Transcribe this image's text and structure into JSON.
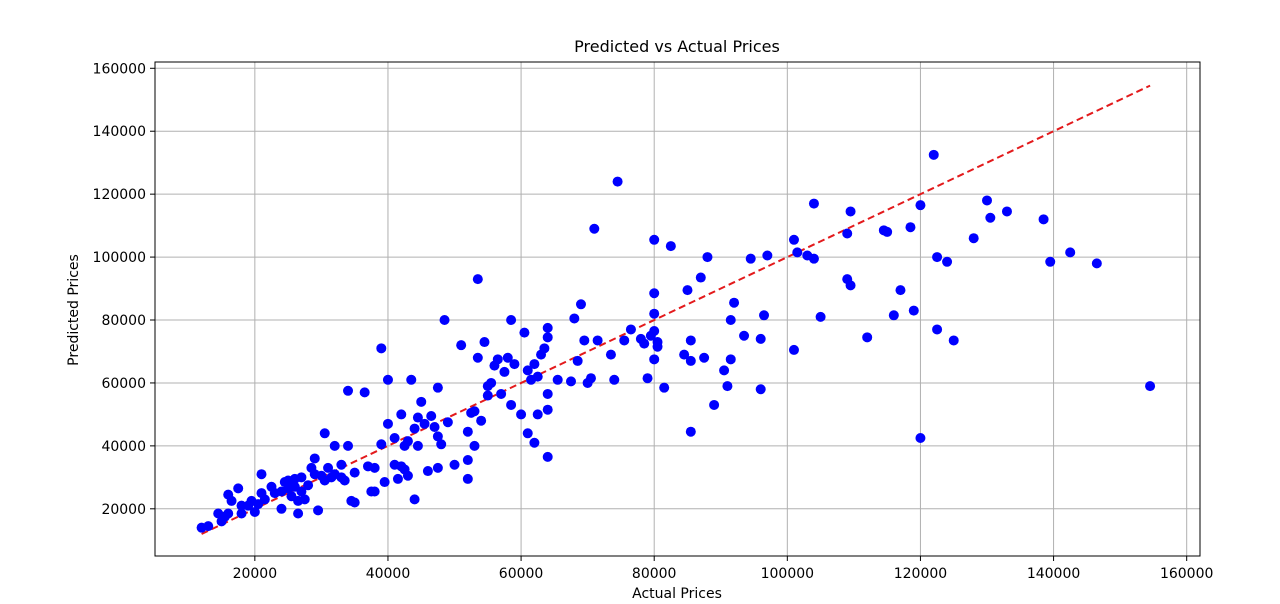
{
  "chart_data": {
    "type": "scatter",
    "title": "Predicted vs Actual Prices",
    "xlabel": "Actual Prices",
    "ylabel": "Predicted Prices",
    "xlim": [
      5000,
      162000
    ],
    "ylim": [
      5000,
      162000
    ],
    "xticks": [
      20000,
      40000,
      60000,
      80000,
      100000,
      120000,
      140000,
      160000
    ],
    "yticks": [
      20000,
      40000,
      60000,
      80000,
      100000,
      120000,
      140000,
      160000
    ],
    "grid": true,
    "colors": {
      "points": "#0000ff",
      "reference_line": "#e31a1c"
    },
    "reference_line": {
      "style": "dashed",
      "x": [
        12000,
        154500
      ],
      "y": [
        12000,
        154500
      ]
    },
    "series": [
      {
        "points": [
          [
            12000,
            14000
          ],
          [
            13000,
            14500
          ],
          [
            14500,
            18500
          ],
          [
            15000,
            16000
          ],
          [
            15500,
            17500
          ],
          [
            16000,
            24500
          ],
          [
            16000,
            18500
          ],
          [
            16500,
            22500
          ],
          [
            17500,
            26500
          ],
          [
            18000,
            21000
          ],
          [
            18000,
            18500
          ],
          [
            19000,
            21000
          ],
          [
            19500,
            22500
          ],
          [
            20000,
            19000
          ],
          [
            20500,
            21500
          ],
          [
            21000,
            25000
          ],
          [
            21000,
            31000
          ],
          [
            21500,
            23000
          ],
          [
            22500,
            27000
          ],
          [
            23000,
            25000
          ],
          [
            24000,
            20000
          ],
          [
            24000,
            25500
          ],
          [
            24500,
            28500
          ],
          [
            25000,
            29000
          ],
          [
            25000,
            26500
          ],
          [
            25500,
            24000
          ],
          [
            26000,
            27000
          ],
          [
            26000,
            29500
          ],
          [
            26500,
            22500
          ],
          [
            26500,
            18500
          ],
          [
            27000,
            25500
          ],
          [
            27000,
            30000
          ],
          [
            27500,
            23000
          ],
          [
            28000,
            27500
          ],
          [
            28500,
            33000
          ],
          [
            29000,
            31000
          ],
          [
            29000,
            36000
          ],
          [
            29500,
            19500
          ],
          [
            30000,
            30500
          ],
          [
            30500,
            29000
          ],
          [
            30500,
            44000
          ],
          [
            31000,
            33000
          ],
          [
            31500,
            30000
          ],
          [
            32000,
            40000
          ],
          [
            32000,
            31000
          ],
          [
            33000,
            34000
          ],
          [
            33000,
            30000
          ],
          [
            33500,
            29000
          ],
          [
            34000,
            57500
          ],
          [
            34000,
            40000
          ],
          [
            34500,
            22500
          ],
          [
            35000,
            31500
          ],
          [
            35000,
            22000
          ],
          [
            36500,
            57000
          ],
          [
            37000,
            33500
          ],
          [
            37500,
            25500
          ],
          [
            38000,
            33000
          ],
          [
            38000,
            25500
          ],
          [
            39000,
            71000
          ],
          [
            39000,
            40500
          ],
          [
            39500,
            28500
          ],
          [
            40000,
            61000
          ],
          [
            40000,
            47000
          ],
          [
            41000,
            42500
          ],
          [
            41000,
            34000
          ],
          [
            41500,
            29500
          ],
          [
            42000,
            50000
          ],
          [
            42000,
            33500
          ],
          [
            42500,
            40000
          ],
          [
            42500,
            32500
          ],
          [
            43000,
            41500
          ],
          [
            43000,
            30500
          ],
          [
            43500,
            61000
          ],
          [
            44000,
            45500
          ],
          [
            44000,
            23000
          ],
          [
            44500,
            40000
          ],
          [
            44500,
            49000
          ],
          [
            45000,
            54000
          ],
          [
            45500,
            47000
          ],
          [
            46000,
            32000
          ],
          [
            46500,
            49500
          ],
          [
            47000,
            46000
          ],
          [
            47500,
            58500
          ],
          [
            47500,
            43000
          ],
          [
            47500,
            33000
          ],
          [
            48000,
            40500
          ],
          [
            48500,
            80000
          ],
          [
            49000,
            47500
          ],
          [
            50000,
            34000
          ],
          [
            51000,
            72000
          ],
          [
            52000,
            29500
          ],
          [
            52000,
            35500
          ],
          [
            52000,
            44500
          ],
          [
            52500,
            50500
          ],
          [
            53000,
            51000
          ],
          [
            53000,
            40000
          ],
          [
            53500,
            93000
          ],
          [
            53500,
            68000
          ],
          [
            54000,
            48000
          ],
          [
            54500,
            73000
          ],
          [
            55000,
            59000
          ],
          [
            55000,
            56000
          ],
          [
            55500,
            60000
          ],
          [
            56000,
            65500
          ],
          [
            56500,
            67500
          ],
          [
            57000,
            56500
          ],
          [
            57500,
            63500
          ],
          [
            58000,
            68000
          ],
          [
            58500,
            80000
          ],
          [
            58500,
            53000
          ],
          [
            59000,
            66000
          ],
          [
            60000,
            50000
          ],
          [
            60500,
            76000
          ],
          [
            61000,
            64000
          ],
          [
            61000,
            44000
          ],
          [
            61500,
            61000
          ],
          [
            62000,
            66000
          ],
          [
            62000,
            41000
          ],
          [
            62500,
            62000
          ],
          [
            62500,
            50000
          ],
          [
            63000,
            69000
          ],
          [
            63500,
            71000
          ],
          [
            64000,
            74500
          ],
          [
            64000,
            77500
          ],
          [
            64000,
            56500
          ],
          [
            64000,
            51500
          ],
          [
            64000,
            36500
          ],
          [
            65500,
            61000
          ],
          [
            67500,
            60500
          ],
          [
            68000,
            80500
          ],
          [
            68500,
            67000
          ],
          [
            69000,
            85000
          ],
          [
            69500,
            73500
          ],
          [
            70000,
            60000
          ],
          [
            70500,
            61500
          ],
          [
            71000,
            109000
          ],
          [
            71500,
            73500
          ],
          [
            73500,
            69000
          ],
          [
            74000,
            61000
          ],
          [
            74500,
            124000
          ],
          [
            75500,
            73500
          ],
          [
            76500,
            77000
          ],
          [
            78000,
            74000
          ],
          [
            78500,
            72500
          ],
          [
            79000,
            61500
          ],
          [
            79500,
            75000
          ],
          [
            80000,
            105500
          ],
          [
            80000,
            88500
          ],
          [
            80000,
            82000
          ],
          [
            80000,
            76500
          ],
          [
            80000,
            67500
          ],
          [
            80500,
            73000
          ],
          [
            80500,
            71500
          ],
          [
            81500,
            58500
          ],
          [
            82500,
            103500
          ],
          [
            84500,
            69000
          ],
          [
            85000,
            89500
          ],
          [
            85500,
            73500
          ],
          [
            85500,
            67000
          ],
          [
            85500,
            44500
          ],
          [
            87000,
            93500
          ],
          [
            87500,
            68000
          ],
          [
            88000,
            100000
          ],
          [
            89000,
            53000
          ],
          [
            90500,
            64000
          ],
          [
            91000,
            59000
          ],
          [
            91500,
            80000
          ],
          [
            91500,
            67500
          ],
          [
            92000,
            85500
          ],
          [
            93500,
            75000
          ],
          [
            94500,
            99500
          ],
          [
            96000,
            74000
          ],
          [
            96000,
            58000
          ],
          [
            96500,
            81500
          ],
          [
            97000,
            100500
          ],
          [
            101000,
            70500
          ],
          [
            101000,
            105500
          ],
          [
            101500,
            101500
          ],
          [
            103000,
            100500
          ],
          [
            104000,
            117000
          ],
          [
            104000,
            99500
          ],
          [
            105000,
            81000
          ],
          [
            109000,
            93000
          ],
          [
            109000,
            107500
          ],
          [
            109500,
            114500
          ],
          [
            109500,
            91000
          ],
          [
            112000,
            74500
          ],
          [
            114500,
            108500
          ],
          [
            115000,
            108000
          ],
          [
            116000,
            81500
          ],
          [
            117000,
            89500
          ],
          [
            118500,
            109500
          ],
          [
            119000,
            83000
          ],
          [
            120000,
            116500
          ],
          [
            120000,
            42500
          ],
          [
            122000,
            132500
          ],
          [
            122500,
            77000
          ],
          [
            122500,
            100000
          ],
          [
            124000,
            98500
          ],
          [
            125000,
            73500
          ],
          [
            128000,
            106000
          ],
          [
            130000,
            118000
          ],
          [
            130500,
            112500
          ],
          [
            133000,
            114500
          ],
          [
            138500,
            112000
          ],
          [
            139500,
            98500
          ],
          [
            142500,
            101500
          ],
          [
            146500,
            98000
          ],
          [
            154500,
            59000
          ]
        ]
      }
    ]
  }
}
